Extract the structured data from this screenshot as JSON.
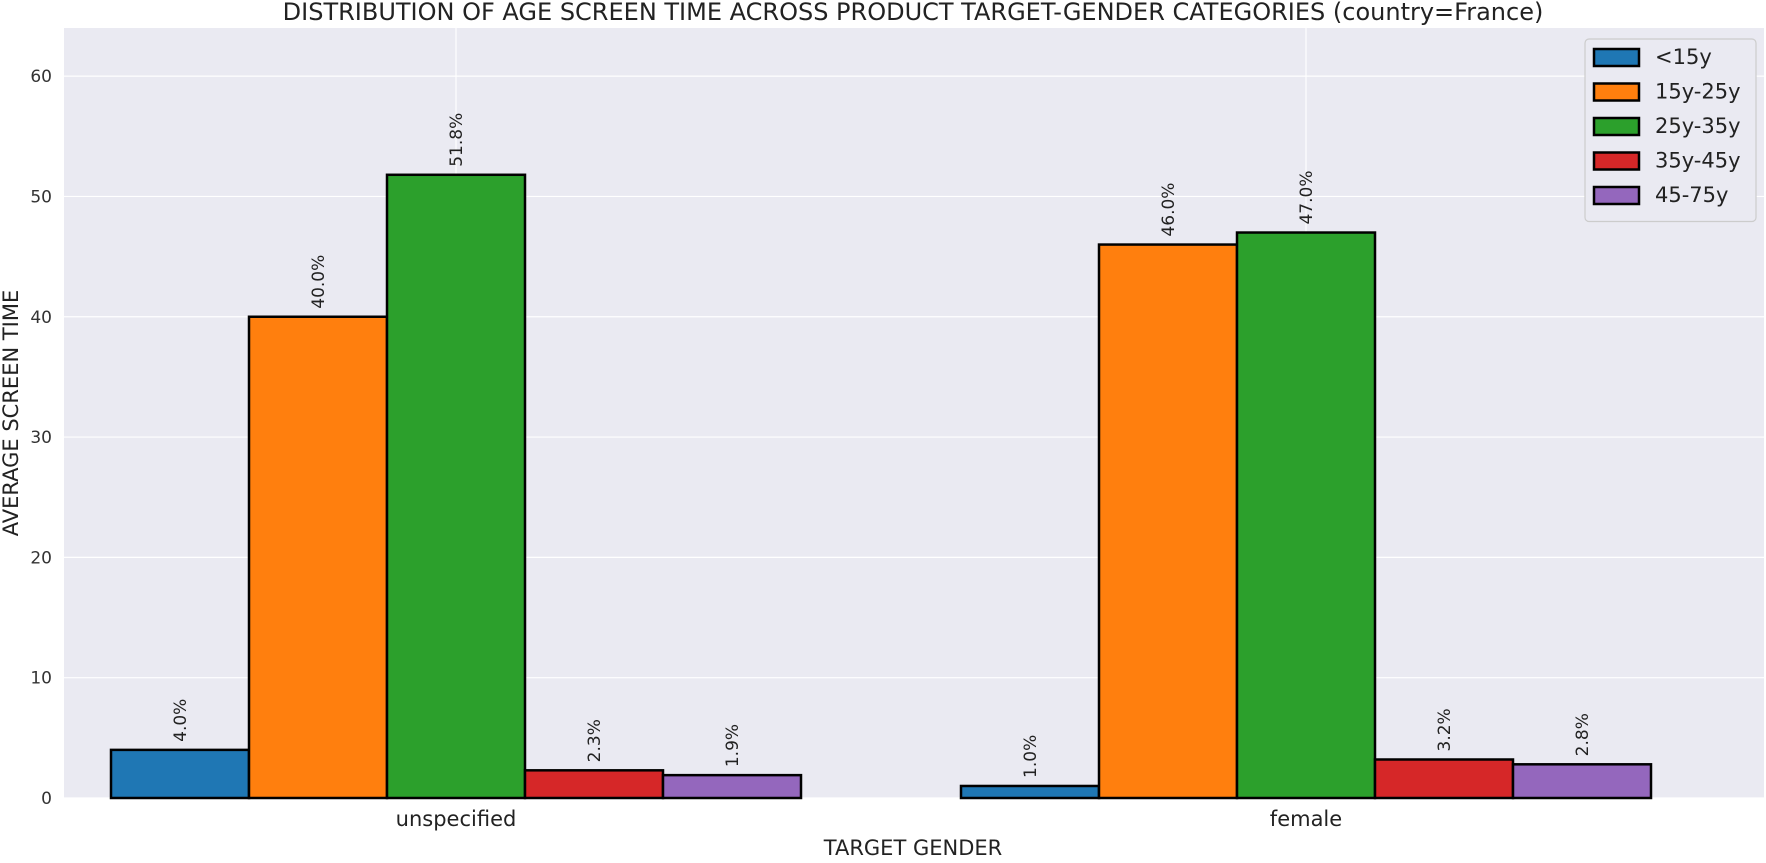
{
  "chart_data": {
    "type": "bar",
    "title": "DISTRIBUTION OF AGE SCREEN TIME ACROSS PRODUCT TARGET-GENDER CATEGORIES (country=France)",
    "xlabel": "TARGET GENDER",
    "ylabel": "AVERAGE SCREEN TIME",
    "categories": [
      "unspecified",
      "female"
    ],
    "ylim": [
      0,
      64
    ],
    "yticks": [
      0,
      10,
      20,
      30,
      40,
      50,
      60
    ],
    "grid": true,
    "legend_position": "top-right",
    "series": [
      {
        "name": "<15y",
        "color": "#1f77b4",
        "values": [
          4.0,
          1.0
        ],
        "labels": [
          "4.0%",
          "1.0%"
        ]
      },
      {
        "name": "15y-25y",
        "color": "#ff7f0e",
        "values": [
          40.0,
          46.0
        ],
        "labels": [
          "40.0%",
          "46.0%"
        ]
      },
      {
        "name": "25y-35y",
        "color": "#2ca02c",
        "values": [
          51.8,
          47.0
        ],
        "labels": [
          "51.8%",
          "47.0%"
        ]
      },
      {
        "name": "35y-45y",
        "color": "#d62728",
        "values": [
          2.3,
          3.2
        ],
        "labels": [
          "2.3%",
          "3.2%"
        ]
      },
      {
        "name": "45-75y",
        "color": "#9467bd",
        "values": [
          1.9,
          2.8
        ],
        "labels": [
          "1.9%",
          "2.8%"
        ]
      }
    ]
  }
}
